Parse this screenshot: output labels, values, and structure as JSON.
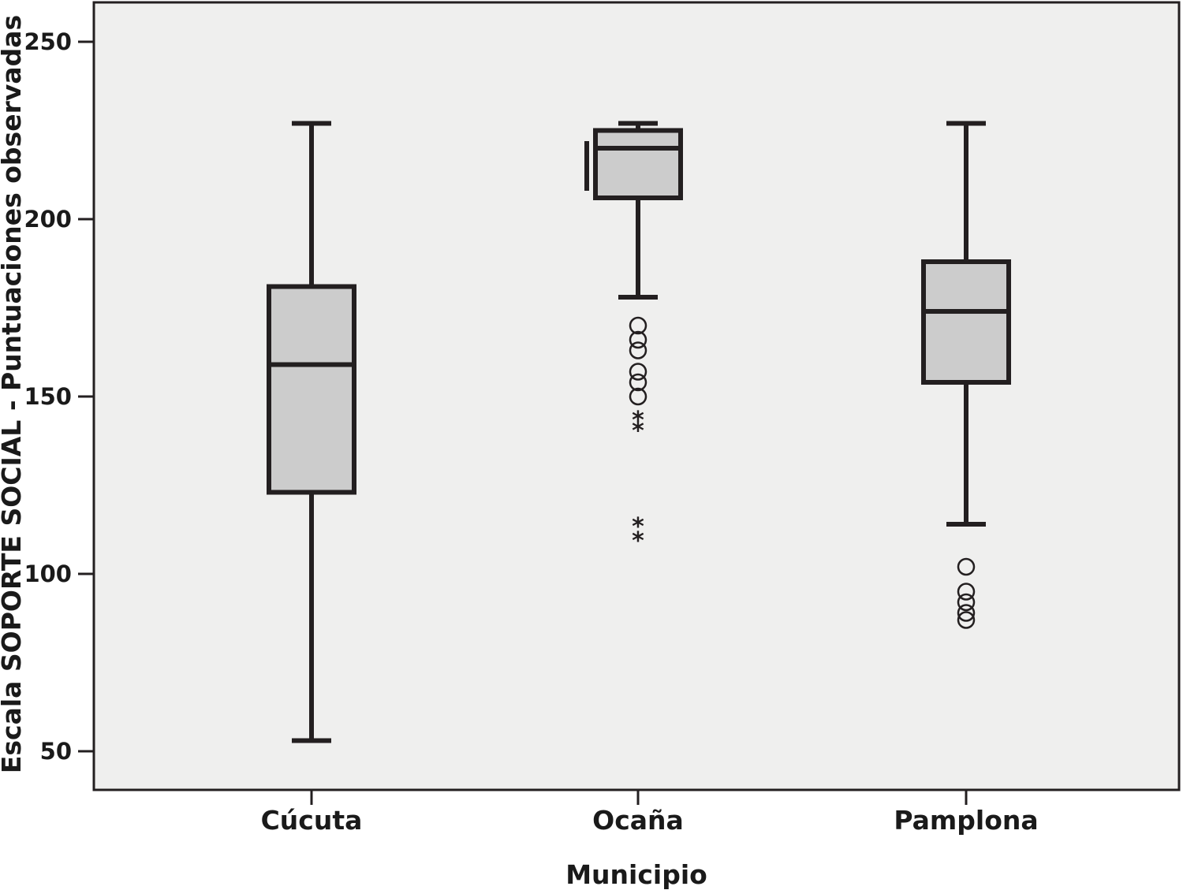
{
  "chart_data": {
    "type": "boxplot",
    "title": "",
    "xlabel": "Municipio",
    "ylabel": "Escala SOPORTE SOCIAL - Puntuaciones observadas",
    "ylim": [
      38,
      261
    ],
    "yticks": [
      50,
      100,
      150,
      200,
      250
    ],
    "grid": false,
    "colors": {
      "plot_background": "#efefee",
      "box_fill": "#cccccc",
      "stroke": "#231f20"
    },
    "categories": [
      "Cúcuta",
      "Ocaña",
      "Pamplona"
    ],
    "boxes": [
      {
        "category": "Cúcuta",
        "whisker_low": 53,
        "q1": 123,
        "median": 159,
        "q3": 181,
        "whisker_high": 227,
        "outliers": [],
        "extremes": []
      },
      {
        "category": "Ocaña",
        "whisker_low": 178,
        "q1": 206,
        "median": 220,
        "q3": 225,
        "whisker_high": 227,
        "outliers": [
          170,
          166,
          163,
          157,
          154,
          150
        ],
        "extremes": [
          144,
          141,
          114,
          110
        ]
      },
      {
        "category": "Pamplona",
        "whisker_low": 114,
        "q1": 154,
        "median": 174,
        "q3": 188,
        "whisker_high": 227,
        "outliers": [
          102,
          95,
          92,
          89,
          87
        ],
        "extremes": []
      }
    ]
  }
}
